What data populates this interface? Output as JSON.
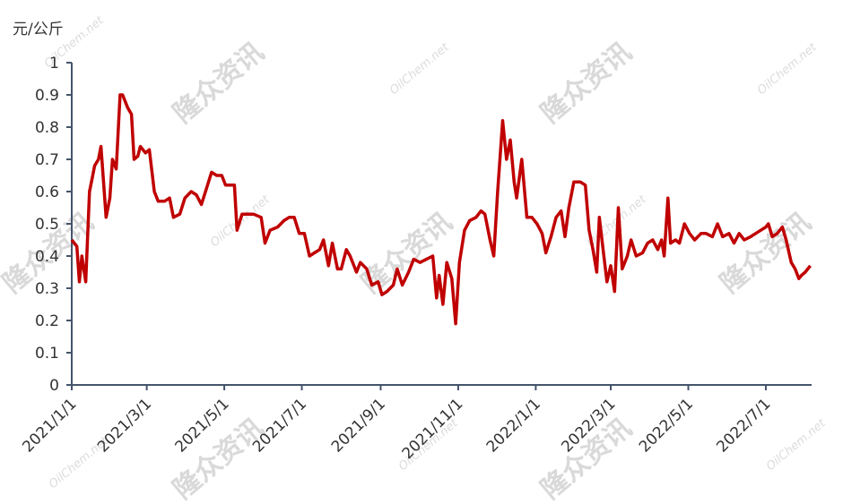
{
  "chart_data": {
    "type": "line",
    "y_label": "元/公斤",
    "watermark": {
      "brand": "隆众资讯",
      "site": "OilChem.net"
    },
    "x": [
      "2021/1/1",
      "2021/1/5",
      "2021/1/7",
      "2021/1/9",
      "2021/1/12",
      "2021/1/15",
      "2021/1/17",
      "2021/1/19",
      "2021/1/22",
      "2021/1/24",
      "2021/1/28",
      "2021/1/31",
      "2021/2/2",
      "2021/2/5",
      "2021/2/8",
      "2021/2/10",
      "2021/2/14",
      "2021/2/17",
      "2021/2/19",
      "2021/2/22",
      "2021/2/24",
      "2021/2/28",
      "2021/3/3",
      "2021/3/7",
      "2021/3/10",
      "2021/3/15",
      "2021/3/19",
      "2021/3/22",
      "2021/3/27",
      "2021/3/31",
      "2021/4/5",
      "2021/4/9",
      "2021/4/13",
      "2021/4/17",
      "2021/4/21",
      "2021/4/25",
      "2021/4/29",
      "2021/5/2",
      "2021/5/9",
      "2021/5/11",
      "2021/5/15",
      "2021/5/19",
      "2021/5/24",
      "2021/5/30",
      "2021/6/2",
      "2021/6/6",
      "2021/6/12",
      "2021/6/17",
      "2021/6/21",
      "2021/6/25",
      "2021/6/29",
      "2021/7/3",
      "2021/7/7",
      "2021/7/11",
      "2021/7/15",
      "2021/7/18",
      "2021/7/22",
      "2021/7/25",
      "2021/7/29",
      "2021/8/1",
      "2021/8/5",
      "2021/8/8",
      "2021/8/13",
      "2021/8/16",
      "2021/8/21",
      "2021/8/25",
      "2021/8/30",
      "2021/9/2",
      "2021/9/6",
      "2021/9/11",
      "2021/9/14",
      "2021/9/18",
      "2021/9/23",
      "2021/9/27",
      "2021/10/2",
      "2021/10/7",
      "2021/10/12",
      "2021/10/15",
      "2021/10/17",
      "2021/10/20",
      "2021/10/23",
      "2021/10/27",
      "2021/10/30",
      "2021/11/2",
      "2021/11/6",
      "2021/11/10",
      "2021/11/15",
      "2021/11/19",
      "2021/11/22",
      "2021/11/26",
      "2021/11/29",
      "2021/12/2",
      "2021/12/6",
      "2021/12/9",
      "2021/12/12",
      "2021/12/15",
      "2021/12/17",
      "2021/12/21",
      "2021/12/25",
      "2021/12/29",
      "2022/1/2",
      "2022/1/6",
      "2022/1/9",
      "2022/1/13",
      "2022/1/17",
      "2022/1/21",
      "2022/1/24",
      "2022/1/27",
      "2022/1/31",
      "2022/2/5",
      "2022/2/9",
      "2022/2/12",
      "2022/2/15",
      "2022/2/18",
      "2022/2/20",
      "2022/2/23",
      "2022/2/26",
      "2022/3/1",
      "2022/3/4",
      "2022/3/7",
      "2022/3/10",
      "2022/3/14",
      "2022/3/17",
      "2022/3/21",
      "2022/3/26",
      "2022/3/30",
      "2022/4/3",
      "2022/4/7",
      "2022/4/10",
      "2022/4/12",
      "2022/4/15",
      "2022/4/17",
      "2022/4/21",
      "2022/4/24",
      "2022/4/28",
      "2022/5/2",
      "2022/5/6",
      "2022/5/11",
      "2022/5/15",
      "2022/5/20",
      "2022/5/24",
      "2022/5/28",
      "2022/6/2",
      "2022/6/6",
      "2022/6/10",
      "2022/6/14",
      "2022/6/19",
      "2022/6/23",
      "2022/6/27",
      "2022/7/1",
      "2022/7/3",
      "2022/7/6",
      "2022/7/10",
      "2022/7/14",
      "2022/7/17",
      "2022/7/21",
      "2022/7/24",
      "2022/7/27",
      "2022/7/29",
      "2022/8/1",
      "2022/8/5"
    ],
    "series": [
      {
        "color": "#c00000",
        "values": [
          0.45,
          0.43,
          0.32,
          0.4,
          0.32,
          0.6,
          0.64,
          0.68,
          0.7,
          0.74,
          0.52,
          0.58,
          0.7,
          0.67,
          0.9,
          0.9,
          0.86,
          0.84,
          0.7,
          0.71,
          0.74,
          0.72,
          0.73,
          0.6,
          0.57,
          0.57,
          0.58,
          0.52,
          0.53,
          0.58,
          0.6,
          0.59,
          0.56,
          0.61,
          0.66,
          0.65,
          0.65,
          0.62,
          0.62,
          0.48,
          0.53,
          0.53,
          0.53,
          0.52,
          0.44,
          0.48,
          0.49,
          0.51,
          0.52,
          0.52,
          0.47,
          0.47,
          0.4,
          0.41,
          0.42,
          0.45,
          0.37,
          0.44,
          0.36,
          0.36,
          0.42,
          0.4,
          0.35,
          0.38,
          0.36,
          0.31,
          0.32,
          0.28,
          0.29,
          0.31,
          0.36,
          0.31,
          0.35,
          0.39,
          0.38,
          0.39,
          0.4,
          0.27,
          0.34,
          0.25,
          0.38,
          0.33,
          0.19,
          0.38,
          0.48,
          0.51,
          0.52,
          0.54,
          0.53,
          0.45,
          0.4,
          0.6,
          0.82,
          0.7,
          0.76,
          0.63,
          0.58,
          0.7,
          0.52,
          0.52,
          0.5,
          0.47,
          0.41,
          0.46,
          0.52,
          0.54,
          0.46,
          0.55,
          0.63,
          0.63,
          0.62,
          0.48,
          0.42,
          0.35,
          0.52,
          0.42,
          0.32,
          0.37,
          0.29,
          0.55,
          0.36,
          0.4,
          0.45,
          0.4,
          0.41,
          0.44,
          0.45,
          0.42,
          0.45,
          0.4,
          0.58,
          0.44,
          0.45,
          0.44,
          0.5,
          0.47,
          0.45,
          0.47,
          0.47,
          0.46,
          0.5,
          0.46,
          0.47,
          0.44,
          0.47,
          0.45,
          0.46,
          0.47,
          0.48,
          0.49,
          0.5,
          0.46,
          0.47,
          0.49,
          0.45,
          0.38,
          0.36,
          0.33,
          0.34,
          0.35,
          0.37
        ]
      }
    ],
    "xlim": [
      "2021/1/1",
      "2022/8/6"
    ],
    "xticks": [
      "2021/1/1",
      "2021/3/1",
      "2021/5/1",
      "2021/7/1",
      "2021/9/1",
      "2021/11/1",
      "2022/1/1",
      "2022/3/1",
      "2022/5/1",
      "2022/7/1"
    ],
    "ylim": [
      0,
      1
    ],
    "yticks": [
      0,
      0.1,
      0.2,
      0.3,
      0.4,
      0.5,
      0.6,
      0.7,
      0.8,
      0.9,
      1
    ]
  }
}
